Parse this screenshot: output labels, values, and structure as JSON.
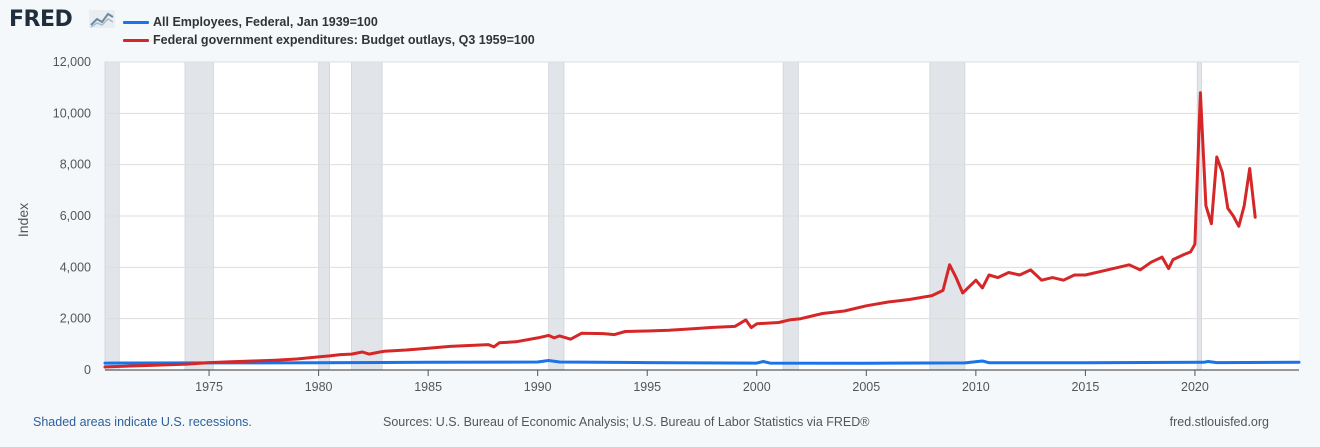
{
  "brand": {
    "name": "FRED",
    "icon": "fred-chart-icon"
  },
  "footer": {
    "recession_note": "Shaded areas indicate U.S. recessions.",
    "sources": "Sources: U.S. Bureau of Economic Analysis; U.S. Bureau of Labor Statistics via FRED®",
    "site": "fred.stlouisfed.org"
  },
  "colors": {
    "background": "#f4f8fb",
    "plot_background": "#ffffff",
    "grid": "#dddddd",
    "recession": "#e1e5ea",
    "series_blue": "#1a73e8",
    "series_red": "#d62728"
  },
  "chart_data": {
    "type": "line",
    "title": "",
    "xlabel": "",
    "ylabel": "Index",
    "xlim": [
      1970.25,
      2024.75
    ],
    "ylim": [
      0,
      12000
    ],
    "grid": true,
    "legend_placement": "top-left",
    "x_ticks": [
      1975,
      1980,
      1985,
      1990,
      1995,
      2000,
      2005,
      2010,
      2015,
      2020
    ],
    "y_ticks": [
      0,
      2000,
      4000,
      6000,
      8000,
      10000,
      12000
    ],
    "y_tick_labels": [
      "0",
      "2,000",
      "4,000",
      "6,000",
      "8,000",
      "10,000",
      "12,000"
    ],
    "recessions": [
      [
        1970.0,
        1970.9
      ],
      [
        1973.9,
        1975.2
      ],
      [
        1980.0,
        1980.5
      ],
      [
        1981.5,
        1982.9
      ],
      [
        1990.5,
        1991.2
      ],
      [
        2001.2,
        2001.9
      ],
      [
        2007.9,
        2009.5
      ],
      [
        2020.1,
        2020.3
      ]
    ],
    "series": [
      {
        "name": "All Employees, Federal, Jan 1939=100",
        "color": "#1a73e8",
        "points": [
          [
            1970.25,
            270
          ],
          [
            1975,
            275
          ],
          [
            1980,
            285
          ],
          [
            1985,
            300
          ],
          [
            1990,
            310
          ],
          [
            1990.5,
            370
          ],
          [
            1991,
            310
          ],
          [
            1995,
            290
          ],
          [
            2000,
            270
          ],
          [
            2000.3,
            330
          ],
          [
            2000.6,
            270
          ],
          [
            2005,
            265
          ],
          [
            2009.5,
            275
          ],
          [
            2010.3,
            350
          ],
          [
            2010.6,
            285
          ],
          [
            2015,
            280
          ],
          [
            2020.4,
            300
          ],
          [
            2020.6,
            330
          ],
          [
            2021,
            290
          ],
          [
            2024.75,
            300
          ]
        ]
      },
      {
        "name": "Federal government expenditures: Budget outlays, Q3 1959=100",
        "color": "#d62728",
        "points": [
          [
            1970.25,
            120
          ],
          [
            1972,
            170
          ],
          [
            1974,
            230
          ],
          [
            1975,
            290
          ],
          [
            1976,
            320
          ],
          [
            1977,
            350
          ],
          [
            1978,
            380
          ],
          [
            1979,
            430
          ],
          [
            1980,
            510
          ],
          [
            1980.5,
            550
          ],
          [
            1981,
            600
          ],
          [
            1981.5,
            620
          ],
          [
            1982,
            700
          ],
          [
            1982.3,
            620
          ],
          [
            1982.8,
            700
          ],
          [
            1983,
            730
          ],
          [
            1984,
            780
          ],
          [
            1985,
            850
          ],
          [
            1986,
            920
          ],
          [
            1987,
            960
          ],
          [
            1987.75,
            990
          ],
          [
            1988,
            900
          ],
          [
            1988.25,
            1060
          ],
          [
            1989,
            1100
          ],
          [
            1990,
            1250
          ],
          [
            1990.5,
            1350
          ],
          [
            1990.75,
            1250
          ],
          [
            1991,
            1330
          ],
          [
            1991.5,
            1200
          ],
          [
            1992,
            1430
          ],
          [
            1993,
            1420
          ],
          [
            1993.5,
            1380
          ],
          [
            1994,
            1500
          ],
          [
            1995,
            1520
          ],
          [
            1996,
            1550
          ],
          [
            1997,
            1600
          ],
          [
            1998,
            1660
          ],
          [
            1999,
            1700
          ],
          [
            1999.5,
            1950
          ],
          [
            1999.75,
            1650
          ],
          [
            2000,
            1800
          ],
          [
            2001,
            1850
          ],
          [
            2001.5,
            1950
          ],
          [
            2002,
            2000
          ],
          [
            2003,
            2200
          ],
          [
            2004,
            2300
          ],
          [
            2005,
            2500
          ],
          [
            2006,
            2650
          ],
          [
            2006.5,
            2700
          ],
          [
            2007,
            2750
          ],
          [
            2008,
            2900
          ],
          [
            2008.5,
            3100
          ],
          [
            2008.8,
            4100
          ],
          [
            2009.1,
            3600
          ],
          [
            2009.4,
            3000
          ],
          [
            2010,
            3500
          ],
          [
            2010.3,
            3200
          ],
          [
            2010.6,
            3700
          ],
          [
            2011,
            3600
          ],
          [
            2011.5,
            3800
          ],
          [
            2012,
            3700
          ],
          [
            2012.5,
            3900
          ],
          [
            2013,
            3500
          ],
          [
            2013.5,
            3600
          ],
          [
            2014,
            3500
          ],
          [
            2014.5,
            3700
          ],
          [
            2015,
            3700
          ],
          [
            2016,
            3900
          ],
          [
            2017,
            4100
          ],
          [
            2017.5,
            3900
          ],
          [
            2018,
            4200
          ],
          [
            2018.5,
            4400
          ],
          [
            2018.8,
            3950
          ],
          [
            2019,
            4300
          ],
          [
            2019.5,
            4500
          ],
          [
            2019.8,
            4600
          ],
          [
            2020.0,
            4900
          ],
          [
            2020.25,
            10800
          ],
          [
            2020.5,
            6400
          ],
          [
            2020.75,
            5700
          ],
          [
            2021,
            8300
          ],
          [
            2021.25,
            7700
          ],
          [
            2021.5,
            6300
          ],
          [
            2021.75,
            6000
          ],
          [
            2022,
            5600
          ],
          [
            2022.25,
            6400
          ],
          [
            2022.5,
            7850
          ],
          [
            2022.75,
            5950
          ]
        ]
      }
    ]
  }
}
